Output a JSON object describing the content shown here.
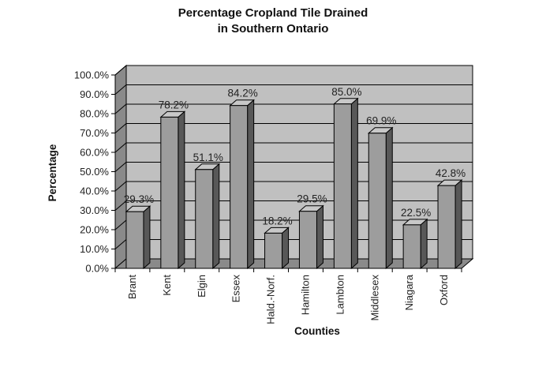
{
  "chart_data": {
    "type": "bar",
    "title_lines": [
      "Percentage Cropland Tile Drained",
      "in Southern Ontario"
    ],
    "xlabel": "Counties",
    "ylabel": "Percentage",
    "categories": [
      "Brant",
      "Kent",
      "Elgin",
      "Essex",
      "Hald.-Norf.",
      "Hamilton",
      "Lambton",
      "Middlesex",
      "Niagara",
      "Oxford"
    ],
    "values": [
      29.3,
      78.2,
      51.1,
      84.2,
      18.2,
      29.5,
      85.0,
      69.9,
      22.5,
      42.8
    ],
    "data_labels": [
      "29.3%",
      "78.2%",
      "51.1%",
      "84.2%",
      "18.2%",
      "29.5%",
      "85.0%",
      "69.9%",
      "22.5%",
      "42.8%"
    ],
    "ylim": [
      0,
      100
    ],
    "yticks": [
      0,
      10,
      20,
      30,
      40,
      50,
      60,
      70,
      80,
      90,
      100
    ],
    "ytick_labels": [
      "0.0%",
      "10.0%",
      "20.0%",
      "30.0%",
      "40.0%",
      "50.0%",
      "60.0%",
      "70.0%",
      "80.0%",
      "90.0%",
      "100.0%"
    ],
    "grid": true,
    "style": "3d",
    "colors": {
      "wall": "#c0c0c0",
      "floor": "#8a8a8a",
      "bar_front": "#9d9d9d",
      "bar_side": "#585858",
      "bar_top": "#c8c8c8",
      "grid": "#000000"
    }
  }
}
